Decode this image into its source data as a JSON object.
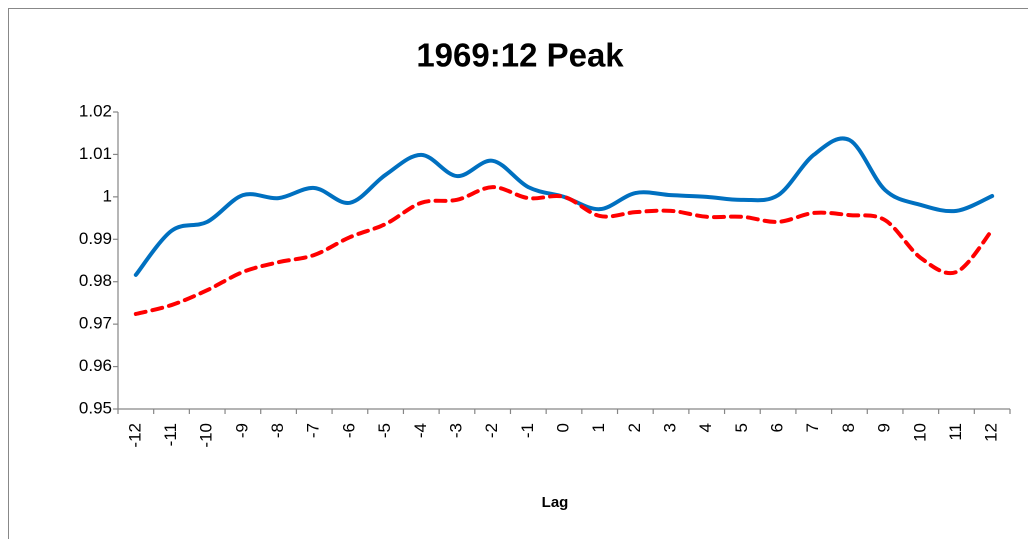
{
  "chart_data": {
    "type": "line",
    "title": "1969:12 Peak",
    "x_label": "Lag",
    "categories": [
      "-12",
      "-11",
      "-10",
      "-9",
      "-8",
      "-7",
      "-6",
      "-5",
      "-4",
      "-3",
      "-2",
      "-1",
      "0",
      "1",
      "2",
      "3",
      "4",
      "5",
      "6",
      "7",
      "8",
      "9",
      "10",
      "11",
      "12"
    ],
    "series": [
      {
        "color": "#0070c0",
        "dash": false,
        "values": [
          0.9816,
          0.992,
          0.9941,
          1.0004,
          0.9997,
          1.0021,
          0.9986,
          1.0052,
          1.0099,
          1.0049,
          1.0085,
          1.0023,
          1.0,
          0.9971,
          1.0009,
          1.0004,
          1.0,
          0.9993,
          1.0004,
          1.0099,
          1.0134,
          1.0016,
          0.9981,
          0.9967,
          1.0002
        ]
      },
      {
        "color": "#ff0000",
        "dash": true,
        "values": [
          0.9724,
          0.9745,
          0.978,
          0.9823,
          0.9846,
          0.9863,
          0.9905,
          0.9936,
          0.9986,
          0.9993,
          1.0023,
          0.9997,
          1.0,
          0.9955,
          0.9964,
          0.9967,
          0.9953,
          0.9953,
          0.9941,
          0.9962,
          0.9957,
          0.9945,
          0.9856,
          0.9823,
          0.9922
        ]
      }
    ],
    "ylim": [
      0.95,
      1.02
    ],
    "yticks": [
      0.95,
      0.96,
      0.97,
      0.98,
      0.99,
      1,
      1.01,
      1.02
    ],
    "grid": false
  }
}
